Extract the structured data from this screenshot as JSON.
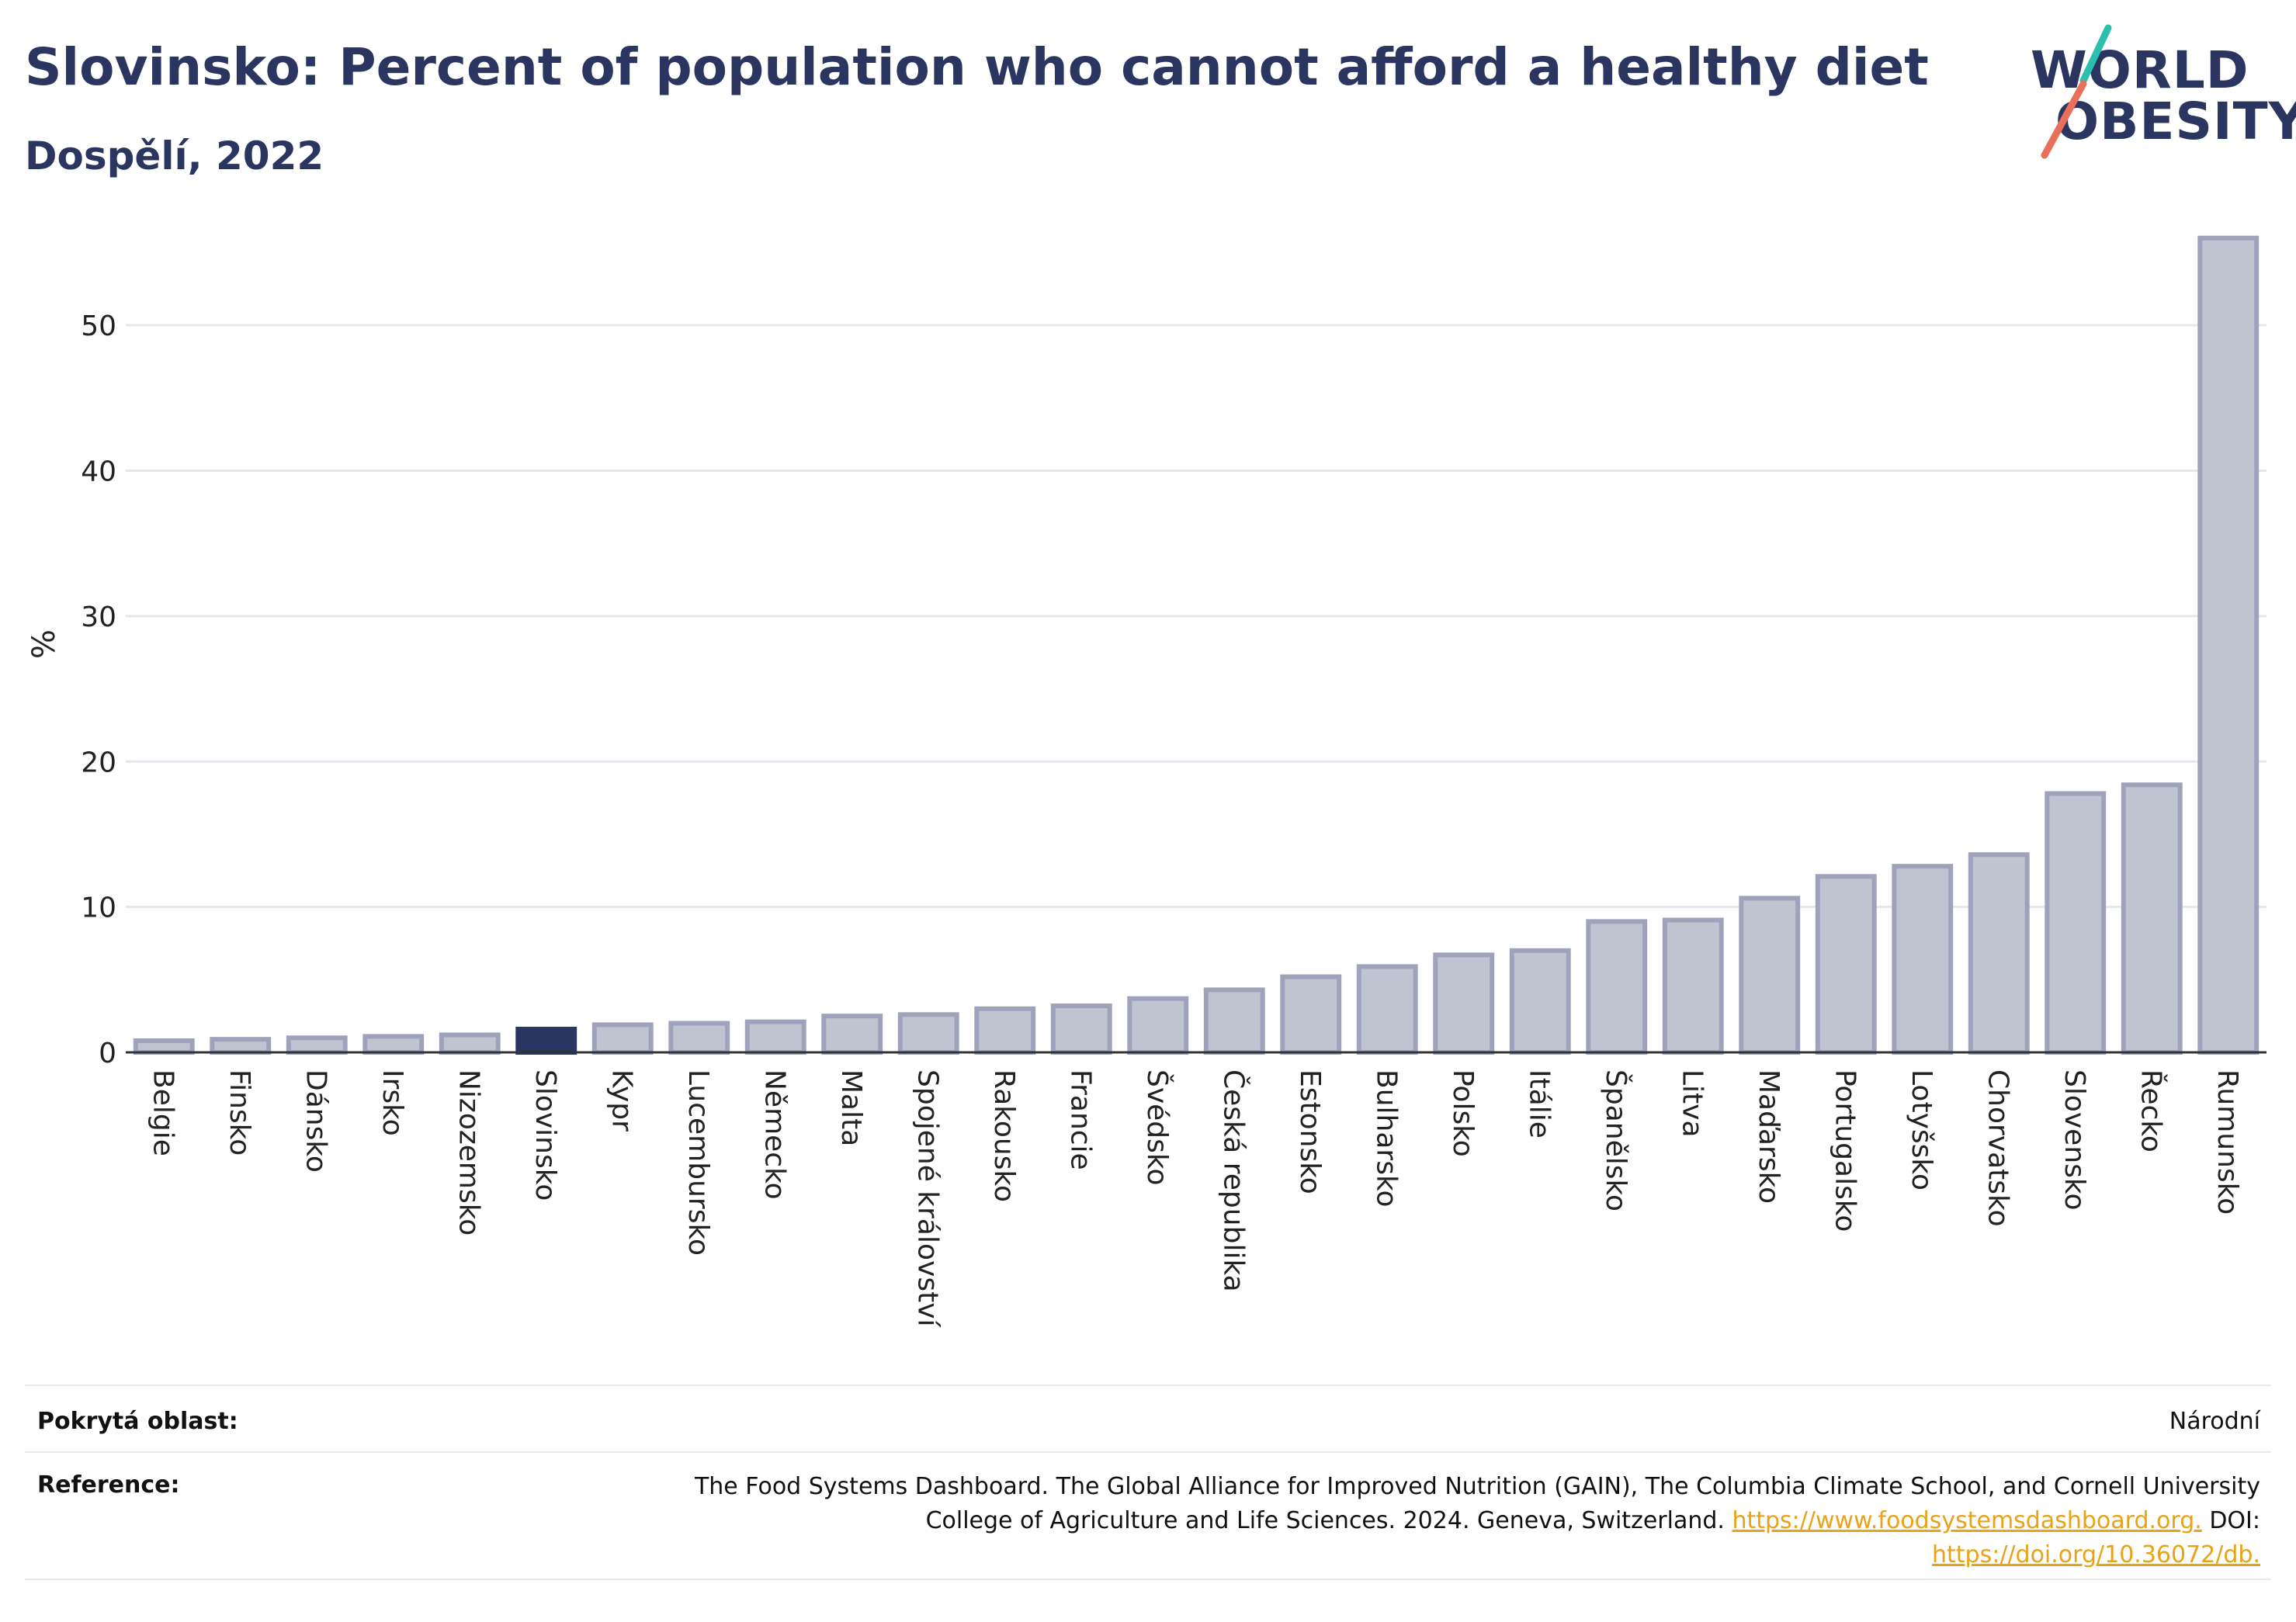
{
  "title": "Slovinsko: Percent of population who cannot afford a healthy diet",
  "subtitle": "Dospělí, 2022",
  "logo": {
    "line1": "WORLD",
    "line2": "OBESITY"
  },
  "colors": {
    "title": "#2a3560",
    "bar_default": "#c0c3d0",
    "bar_default_stroke": "#9ea3bb",
    "bar_highlight": "#2a3560",
    "grid": "#e5e7ee",
    "link": "#e8a317",
    "logo_teal": "#2bbfb0",
    "logo_coral": "#e8705a"
  },
  "chart_data": {
    "type": "bar",
    "ylabel": "%",
    "xlabel": "",
    "ylim": [
      0,
      57
    ],
    "yticks": [
      0,
      10,
      20,
      30,
      40,
      50
    ],
    "grid": true,
    "highlight": "Slovinsko",
    "categories": [
      "Belgie",
      "Finsko",
      "Dánsko",
      "Irsko",
      "Nizozemsko",
      "Slovinsko",
      "Kypr",
      "Lucembursko",
      "Německo",
      "Malta",
      "Spojené království",
      "Rakousko",
      "Francie",
      "Švédsko",
      "Česká republika",
      "Estonsko",
      "Bulharsko",
      "Polsko",
      "Itálie",
      "Španělsko",
      "Litva",
      "Maďarsko",
      "Portugalsko",
      "Lotyšsko",
      "Chorvatsko",
      "Slovensko",
      "Řecko",
      "Rumunsko"
    ],
    "values": [
      0.8,
      0.9,
      1.0,
      1.1,
      1.2,
      1.6,
      1.9,
      2.0,
      2.1,
      2.5,
      2.6,
      3.0,
      3.2,
      3.7,
      4.3,
      5.2,
      5.9,
      6.7,
      7.0,
      9.0,
      9.1,
      10.6,
      12.1,
      12.8,
      13.6,
      17.8,
      18.4,
      56.0
    ]
  },
  "footer": {
    "coverage_label": "Pokrytá oblast:",
    "coverage_value": "Národní",
    "reference_label": "Reference:",
    "reference_text_1": "The Food Systems Dashboard. The Global Alliance for Improved Nutrition (GAIN), The Columbia Climate School, and Cornell University",
    "reference_text_2": "College of Agriculture and Life Sciences. 2024. Geneva, Switzerland. ",
    "reference_link_1": "https://www.foodsystemsdashboard.org.",
    "reference_doi_label": " DOI:",
    "reference_link_2": "https://doi.org/10.36072/db."
  }
}
